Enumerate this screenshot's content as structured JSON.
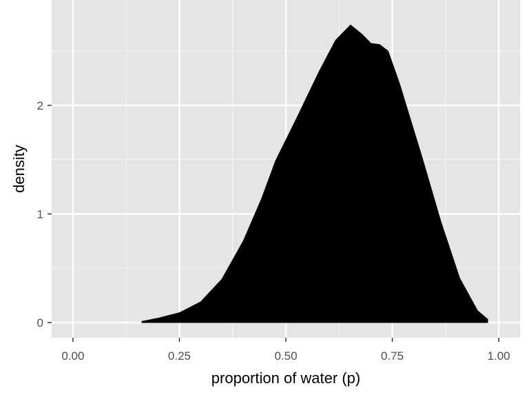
{
  "chart_data": {
    "type": "area",
    "title": "",
    "xlabel": "proportion of water (p)",
    "ylabel": "density",
    "xlim": [
      -0.05,
      1.05
    ],
    "ylim": [
      -0.14,
      2.97
    ],
    "xticks": [
      0,
      0.25,
      0.5,
      0.75,
      1
    ],
    "xtick_labels": [
      "0.00",
      "0.25",
      "0.50",
      "0.75",
      "1.00"
    ],
    "yticks": [
      0,
      1,
      2
    ],
    "ytick_labels": [
      "0",
      "1",
      "2"
    ],
    "grid": true,
    "fill_color": "#000000",
    "panel_color": "#E5E5E5",
    "x": [
      0.162,
      0.2,
      0.25,
      0.3,
      0.35,
      0.4,
      0.443,
      0.476,
      0.524,
      0.578,
      0.617,
      0.652,
      0.68,
      0.7,
      0.72,
      0.74,
      0.767,
      0.82,
      0.864,
      0.908,
      0.95,
      0.974
    ],
    "y": [
      0.01,
      0.04,
      0.09,
      0.19,
      0.4,
      0.75,
      1.14,
      1.49,
      1.87,
      2.31,
      2.6,
      2.74,
      2.65,
      2.57,
      2.56,
      2.5,
      2.2,
      1.52,
      0.93,
      0.41,
      0.11,
      0.03
    ]
  }
}
